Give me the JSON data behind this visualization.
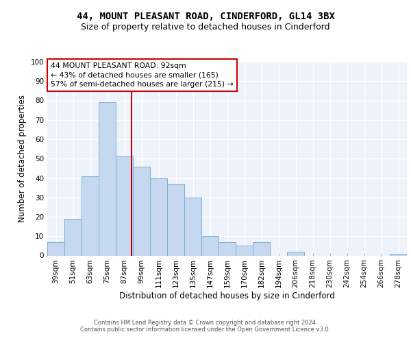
{
  "title1": "44, MOUNT PLEASANT ROAD, CINDERFORD, GL14 3BX",
  "title2": "Size of property relative to detached houses in Cinderford",
  "xlabel": "Distribution of detached houses by size in Cinderford",
  "ylabel": "Number of detached properties",
  "categories": [
    "39sqm",
    "51sqm",
    "63sqm",
    "75sqm",
    "87sqm",
    "99sqm",
    "111sqm",
    "123sqm",
    "135sqm",
    "147sqm",
    "159sqm",
    "170sqm",
    "182sqm",
    "194sqm",
    "206sqm",
    "218sqm",
    "230sqm",
    "242sqm",
    "254sqm",
    "266sqm",
    "278sqm"
  ],
  "values": [
    7,
    19,
    41,
    79,
    51,
    46,
    40,
    37,
    30,
    10,
    7,
    5,
    7,
    0,
    2,
    0,
    0,
    0,
    0,
    0,
    1
  ],
  "bar_color": "#c5d8f0",
  "bar_edge_color": "#7bafd4",
  "property_line_color": "#cc0000",
  "annotation_line1": "44 MOUNT PLEASANT ROAD: 92sqm",
  "annotation_line2": "← 43% of detached houses are smaller (165)",
  "annotation_line3": "57% of semi-detached houses are larger (215) →",
  "annotation_box_color": "#ffffff",
  "annotation_border_color": "#cc0000",
  "ylim": [
    0,
    100
  ],
  "background_color": "#eef2fa",
  "grid_color": "#ffffff",
  "footer_line1": "Contains HM Land Registry data © Crown copyright and database right 2024.",
  "footer_line2": "Contains public sector information licensed under the Open Government Licence v3.0.",
  "title1_fontsize": 10,
  "title2_fontsize": 9,
  "xlabel_fontsize": 8.5,
  "ylabel_fontsize": 8.5,
  "tick_fontsize": 7.5,
  "footer_fontsize": 6.0
}
